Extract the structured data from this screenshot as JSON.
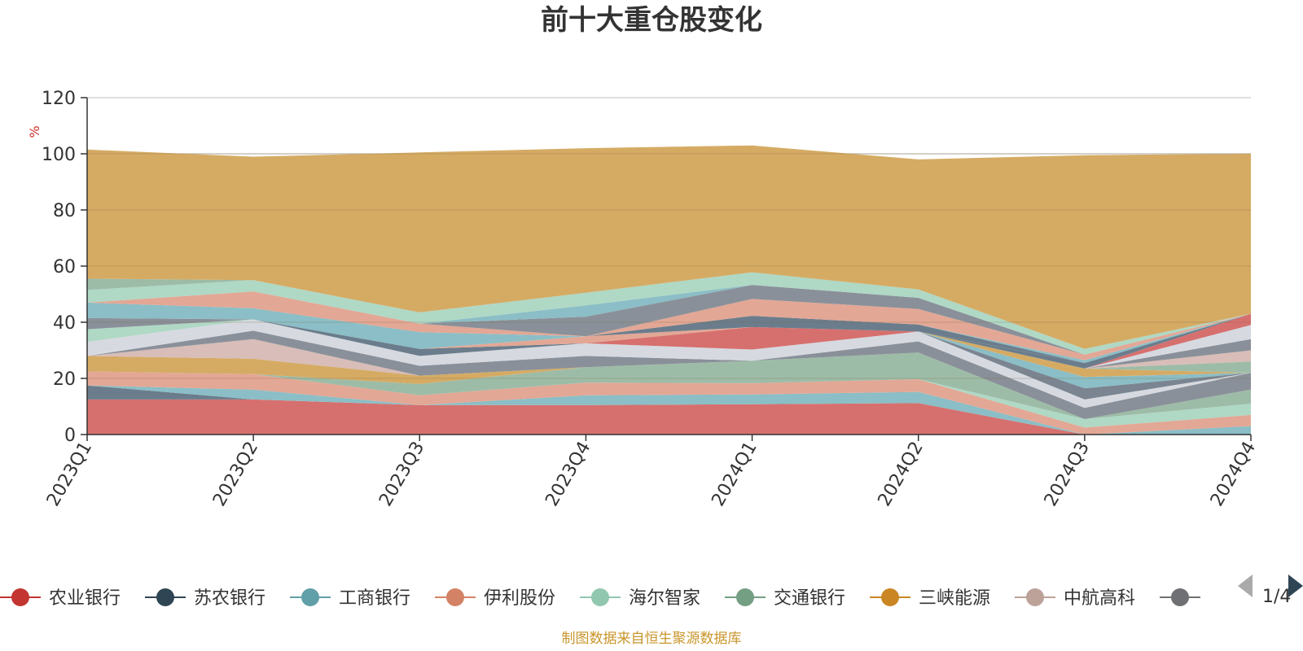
{
  "chart_data": {
    "type": "area",
    "stacked": true,
    "title": "前十大重仓股变化",
    "ylabel": "%",
    "ylim": [
      0,
      120
    ],
    "yticks": [
      0,
      20,
      40,
      60,
      80,
      100,
      120
    ],
    "categories": [
      "2023Q1",
      "2023Q2",
      "2023Q3",
      "2023Q4",
      "2024Q1",
      "2024Q2",
      "2024Q3",
      "2024Q4"
    ],
    "grid": true,
    "legend_position": "bottom",
    "series": [
      {
        "name": "农业银行",
        "color": "#d6706e",
        "values": [
          12.5,
          12.5,
          10.5,
          10.5,
          10.8,
          11.2,
          0,
          0
        ]
      },
      {
        "name": "苏农银行",
        "color": "#6b7d8c",
        "values": [
          5,
          0,
          0,
          0,
          0,
          0,
          0,
          0
        ]
      },
      {
        "name": "工商银行",
        "color": "#8bbec6",
        "values": [
          0,
          3.5,
          0,
          3.5,
          3.5,
          4,
          0,
          3
        ]
      },
      {
        "name": "伊利股份",
        "color": "#e3a795",
        "values": [
          5,
          5.5,
          3.5,
          4.5,
          4,
          4.5,
          2.5,
          4
        ]
      },
      {
        "name": "海尔智家",
        "color": "#afd8c5",
        "values": [
          0,
          0,
          0,
          0,
          0,
          0,
          3,
          4
        ]
      },
      {
        "name": "交通银行",
        "color": "#9dbca7",
        "values": [
          0,
          0,
          4,
          5.5,
          8,
          9.5,
          0,
          5
        ]
      },
      {
        "name": "三峡能源",
        "color": "#d5ab64",
        "values": [
          5.5,
          5.5,
          3,
          0,
          0,
          0,
          0,
          0
        ]
      },
      {
        "name": "中航高科",
        "color": "#d8bdb8",
        "values": [
          0,
          7,
          0,
          0,
          0,
          0,
          0,
          0
        ]
      },
      {
        "name": "",
        "color": "#8a9099",
        "values": [
          0,
          3,
          3.5,
          4,
          0,
          4,
          4,
          6
        ]
      }
    ],
    "other_layers": [
      {
        "color": "#d6d9e0",
        "values": [
          0,
          4,
          3.5,
          4.5,
          4,
          3.5,
          3,
          0
        ]
      },
      {
        "color": "#7a8591",
        "values": [
          0,
          0,
          0,
          0,
          0,
          0,
          4,
          0
        ]
      },
      {
        "color": "#8bbec6",
        "values": [
          0,
          0,
          0,
          0,
          0,
          0,
          4,
          0
        ]
      },
      {
        "color": "#d5ab64",
        "values": [
          0,
          0,
          0,
          0,
          0,
          0,
          3,
          0
        ]
      },
      {
        "color": "#9dbca7",
        "values": [
          0,
          0,
          0,
          0,
          0,
          0,
          0,
          4
        ]
      },
      {
        "color": "#d8bdb8",
        "values": [
          0,
          0,
          0,
          0,
          0,
          0,
          0,
          4
        ]
      },
      {
        "color": "#8a9099",
        "values": [
          0,
          0,
          0,
          0,
          0,
          0,
          0,
          4
        ]
      },
      {
        "color": "#d6d9e0",
        "values": [
          0,
          0,
          0,
          0,
          0,
          0,
          0,
          5
        ]
      },
      {
        "color": "#d6706e",
        "values": [
          0,
          0,
          0,
          0,
          8,
          0,
          0,
          4
        ]
      },
      {
        "color": "#6b7d8c",
        "values": [
          0,
          0,
          0,
          0,
          0,
          0,
          2,
          0
        ]
      },
      {
        "color": "#d6d9e0",
        "values": [
          5,
          0,
          0,
          0,
          0,
          0,
          0,
          0
        ]
      },
      {
        "color": "#afd8c5",
        "values": [
          4.5,
          0,
          0,
          0,
          0,
          0,
          0,
          0
        ]
      },
      {
        "color": "#6b7d8c",
        "values": [
          0,
          0,
          2.5,
          0,
          0,
          0,
          0,
          0
        ]
      },
      {
        "color": "#e3a795",
        "values": [
          0,
          0,
          0,
          2.5,
          0,
          0,
          0,
          0
        ]
      },
      {
        "color": "#6b7d8c",
        "values": [
          0,
          0,
          0,
          0,
          4,
          2.5,
          0,
          0
        ]
      },
      {
        "color": "#8a9099",
        "values": [
          4,
          0,
          0,
          0,
          0,
          0,
          0,
          0
        ]
      },
      {
        "color": "#8bbec6",
        "values": [
          5.5,
          4,
          6,
          0,
          0,
          0,
          1,
          0
        ]
      },
      {
        "color": "#e3a795",
        "values": [
          0,
          6,
          3,
          0,
          6,
          5.5,
          2,
          0
        ]
      },
      {
        "color": "#8a9099",
        "values": [
          0,
          0,
          0,
          7,
          5,
          4,
          0,
          0
        ]
      },
      {
        "color": "#8bbec6",
        "values": [
          0,
          0,
          0,
          4,
          0,
          0,
          0,
          0
        ]
      },
      {
        "color": "#afd8c5",
        "values": [
          4.5,
          4,
          4,
          4.5,
          4.5,
          3,
          2,
          0
        ]
      },
      {
        "color": "#9dbca7",
        "values": [
          4,
          0,
          0,
          0,
          0,
          0,
          0,
          0
        ]
      },
      {
        "color": "#d5ab64",
        "values": [
          46,
          44,
          57,
          51.5,
          45.2,
          46.3,
          69,
          57
        ]
      }
    ]
  },
  "legend": {
    "page_indicator": "1/4"
  },
  "footer": {
    "source": "制图数据来自恒生聚源数据库"
  }
}
